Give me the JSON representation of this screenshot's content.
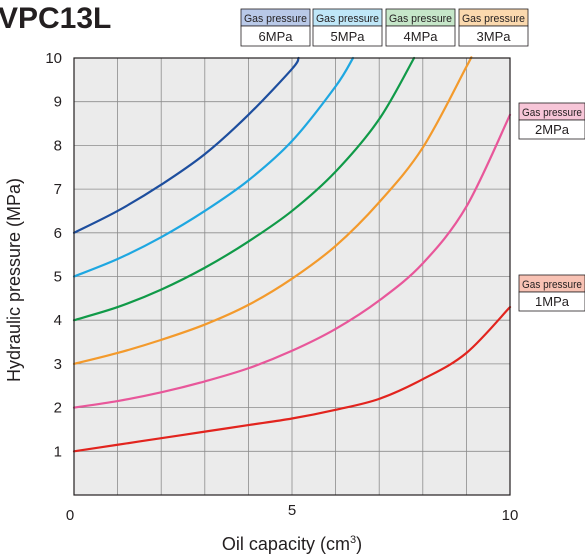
{
  "chart_data": {
    "type": "line",
    "title": "VPC13L",
    "xlabel": "Oil capacity (cm",
    "xlabel_sup": "3",
    "xlabel_close": ")",
    "ylabel": "Hydraulic pressure (MPa)",
    "xlim": [
      0,
      10
    ],
    "ylim": [
      0,
      10
    ],
    "x_ticks": [
      "0",
      "5",
      "10"
    ],
    "y_ticks": [
      "1",
      "2",
      "3",
      "4",
      "5",
      "6",
      "7",
      "8",
      "9",
      "10"
    ],
    "grid": true,
    "legend_placement": "top and right",
    "series": [
      {
        "name_top": "Gas pressure",
        "name_bottom": "6MPa",
        "color": "#1d4e9e",
        "fill": "#b9c9e8",
        "x": [
          0,
          1,
          2,
          3,
          4,
          5,
          5.15
        ],
        "y": [
          6.0,
          6.5,
          7.1,
          7.8,
          8.7,
          9.75,
          10.0
        ]
      },
      {
        "name_top": "Gas pressure",
        "name_bottom": "5MPa",
        "color": "#1ea7e1",
        "fill": "#bfe7f8",
        "x": [
          0,
          1,
          2,
          3,
          4,
          5,
          6,
          6.4
        ],
        "y": [
          5.0,
          5.4,
          5.9,
          6.5,
          7.2,
          8.1,
          9.35,
          10.0
        ]
      },
      {
        "name_top": "Gas pressure",
        "name_bottom": "4MPa",
        "color": "#109a48",
        "fill": "#c6e7c9",
        "x": [
          0,
          1,
          2,
          3,
          4,
          5,
          6,
          7,
          7.8
        ],
        "y": [
          4.0,
          4.3,
          4.7,
          5.2,
          5.8,
          6.5,
          7.4,
          8.6,
          10.0
        ]
      },
      {
        "name_top": "Gas pressure",
        "name_bottom": "3MPa",
        "color": "#f39a2c",
        "fill": "#fbd9ae",
        "x": [
          0,
          1,
          2,
          3,
          4,
          5,
          6,
          7,
          8,
          9,
          9.1
        ],
        "y": [
          3.0,
          3.25,
          3.55,
          3.9,
          4.35,
          4.95,
          5.7,
          6.7,
          7.95,
          9.8,
          10.0
        ]
      },
      {
        "name_top": "Gas pressure",
        "name_bottom": "2MPa",
        "color": "#e8579a",
        "fill": "#f7c6d8",
        "x": [
          0,
          1,
          2,
          3,
          4,
          5,
          6,
          7,
          8,
          9,
          10
        ],
        "y": [
          2.0,
          2.15,
          2.35,
          2.6,
          2.9,
          3.3,
          3.8,
          4.45,
          5.3,
          6.6,
          8.7
        ]
      },
      {
        "name_top": "Gas pressure",
        "name_bottom": "1MPa",
        "color": "#e2241e",
        "fill": "#f8c2b4",
        "x": [
          0,
          1,
          2,
          3,
          4,
          5,
          6,
          7,
          8,
          9,
          10
        ],
        "y": [
          1.0,
          1.15,
          1.3,
          1.45,
          1.6,
          1.75,
          1.95,
          2.2,
          2.65,
          3.25,
          4.3
        ]
      }
    ]
  }
}
